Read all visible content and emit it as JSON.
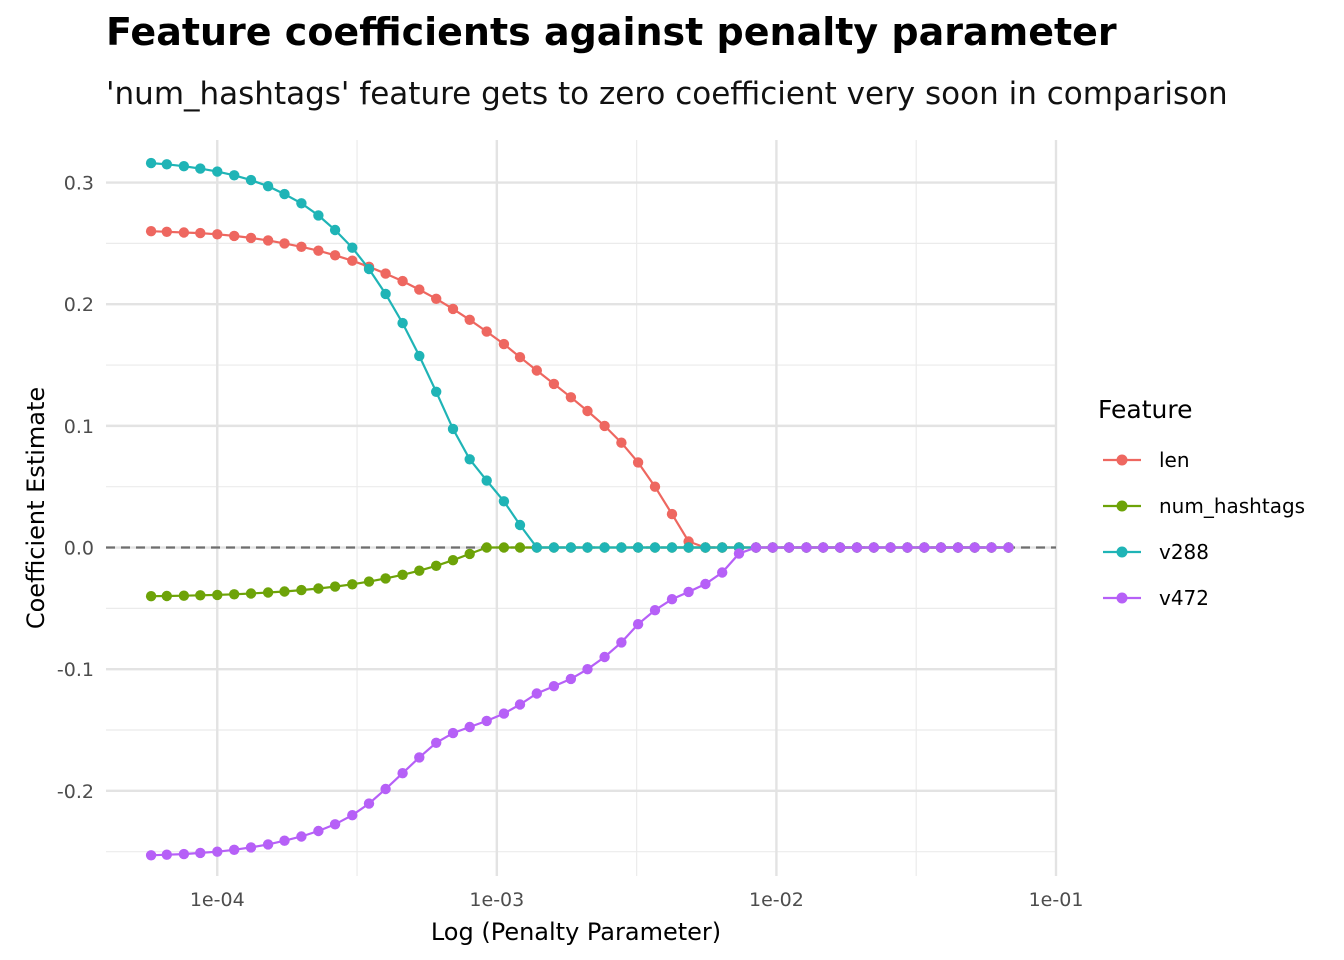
{
  "chart_data": {
    "type": "line",
    "title": "Feature coefficients against penalty parameter",
    "subtitle": "'num_hashtags' feature gets to zero coefficient very soon in comparison",
    "xlabel": "Log (Penalty Parameter)",
    "ylabel": "Coefficient Estimate",
    "x_scale": "log10",
    "xlim": [
      4e-05,
      0.1
    ],
    "ylim": [
      -0.27,
      0.335
    ],
    "x_ticks": [
      0.0001,
      0.001,
      0.01,
      0.1
    ],
    "x_tick_labels": [
      "1e-04",
      "1e-03",
      "1e-02",
      "1e-01"
    ],
    "y_ticks": [
      -0.2,
      -0.1,
      0.0,
      0.1,
      0.2,
      0.3
    ],
    "y_tick_labels": [
      "-0.2",
      "-0.1",
      "0.0",
      "0.1",
      "0.2",
      "0.3"
    ],
    "grid": true,
    "reference_line": {
      "y": 0.0,
      "style": "dashed",
      "color": "#6e6e6e"
    },
    "legend": {
      "title": "Feature",
      "placement": "right"
    },
    "markers": "points-with-lines",
    "x": [
      5.8e-05,
      6.6e-05,
      7.6e-05,
      8.7e-05,
      0.0001,
      0.000115,
      0.000132,
      0.000152,
      0.000174,
      0.0002,
      0.00023,
      0.000264,
      0.000304,
      0.000349,
      0.0004,
      0.00046,
      0.000528,
      0.000607,
      0.000697,
      0.0008,
      0.00092,
      0.00106,
      0.00121,
      0.00139,
      0.0016,
      0.00184,
      0.00211,
      0.00243,
      0.00279,
      0.0032,
      0.00368,
      0.00423,
      0.00485,
      0.00557,
      0.0064,
      0.00735,
      0.00845,
      0.0097,
      0.0111,
      0.0128,
      0.0147,
      0.0169,
      0.0194,
      0.0223,
      0.0256,
      0.0294,
      0.0338,
      0.0388,
      0.0446,
      0.0512,
      0.0588,
      0.0676
    ],
    "series": [
      {
        "name": "len",
        "color": "#ee6760",
        "values": [
          0.26,
          0.2595,
          0.259,
          0.2585,
          0.2575,
          0.2562,
          0.2545,
          0.2525,
          0.25,
          0.2472,
          0.244,
          0.2402,
          0.2358,
          0.2308,
          0.2252,
          0.219,
          0.212,
          0.2045,
          0.1962,
          0.1872,
          0.1775,
          0.1672,
          0.1565,
          0.1455,
          0.1345,
          0.1235,
          0.1122,
          0.1,
          0.0862,
          0.07,
          0.05,
          0.0275,
          0.005,
          0.0,
          0.0,
          0.0,
          0.0,
          0.0,
          0.0,
          0.0,
          0.0,
          0.0,
          0.0,
          0.0,
          0.0,
          0.0,
          0.0,
          0.0,
          0.0,
          0.0,
          0.0,
          0.0
        ]
      },
      {
        "name": "num_hashtags",
        "color": "#6da308",
        "values": [
          -0.04,
          -0.0398,
          -0.0396,
          -0.0393,
          -0.0389,
          -0.0384,
          -0.0378,
          -0.037,
          -0.0361,
          -0.035,
          -0.0337,
          -0.0321,
          -0.0302,
          -0.028,
          -0.0254,
          -0.0224,
          -0.019,
          -0.015,
          -0.0104,
          -0.0052,
          0.0,
          0.0,
          0.0,
          0.0,
          0.0,
          0.0,
          0.0,
          0.0,
          0.0,
          0.0,
          0.0,
          0.0,
          0.0,
          0.0,
          0.0,
          0.0,
          0.0,
          0.0,
          0.0,
          0.0,
          0.0,
          0.0,
          0.0,
          0.0,
          0.0,
          0.0,
          0.0,
          0.0,
          0.0,
          0.0,
          0.0,
          0.0
        ]
      },
      {
        "name": "v288",
        "color": "#1fb4b6",
        "values": [
          0.316,
          0.315,
          0.3135,
          0.3115,
          0.309,
          0.306,
          0.302,
          0.297,
          0.2905,
          0.283,
          0.273,
          0.261,
          0.2465,
          0.229,
          0.2085,
          0.1845,
          0.1575,
          0.128,
          0.0975,
          0.0725,
          0.055,
          0.038,
          0.0185,
          0.0,
          0.0,
          0.0,
          0.0,
          0.0,
          0.0,
          0.0,
          0.0,
          0.0,
          0.0,
          0.0,
          0.0,
          0.0,
          0.0,
          0.0,
          0.0,
          0.0,
          0.0,
          0.0,
          0.0,
          0.0,
          0.0,
          0.0,
          0.0,
          0.0,
          0.0,
          0.0,
          0.0,
          0.0
        ]
      },
      {
        "name": "v472",
        "color": "#b660f7",
        "values": [
          -0.253,
          -0.2525,
          -0.252,
          -0.251,
          -0.25,
          -0.2485,
          -0.2465,
          -0.244,
          -0.241,
          -0.2375,
          -0.233,
          -0.2275,
          -0.22,
          -0.2105,
          -0.1985,
          -0.1855,
          -0.1725,
          -0.1605,
          -0.1525,
          -0.1475,
          -0.1425,
          -0.1365,
          -0.129,
          -0.12,
          -0.114,
          -0.108,
          -0.1,
          -0.09,
          -0.078,
          -0.063,
          -0.0515,
          -0.0425,
          -0.0365,
          -0.03,
          -0.0205,
          -0.005,
          0.0,
          0.0,
          0.0,
          0.0,
          0.0,
          0.0,
          0.0,
          0.0,
          0.0,
          0.0,
          0.0,
          0.0,
          0.0,
          0.0,
          0.0,
          0.0
        ]
      }
    ]
  }
}
